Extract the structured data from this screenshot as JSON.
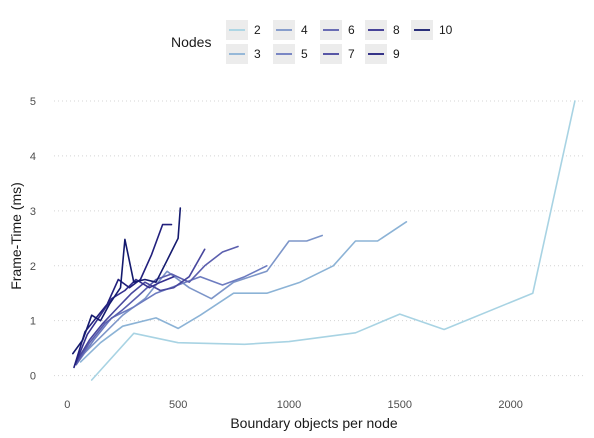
{
  "chart_data": {
    "type": "line",
    "xlabel": "Boundary objects per node",
    "ylabel": "Frame-Time (ms)",
    "xlim": [
      -60,
      2340
    ],
    "ylim": [
      -0.08,
      5.2
    ],
    "xticks": [
      0,
      500,
      1000,
      1500,
      2000
    ],
    "yticks": [
      0,
      1,
      2,
      3,
      4,
      5
    ],
    "grid": "horizontal dotted",
    "legend": {
      "title": "Nodes",
      "placement": "top"
    },
    "series": [
      {
        "name": "2",
        "color": "#a8d3e3",
        "x": [
          110,
          300,
          500,
          800,
          1000,
          1300,
          1500,
          1700,
          2100,
          2290
        ],
        "y": [
          -0.08,
          0.77,
          0.6,
          0.57,
          0.62,
          0.78,
          1.12,
          0.84,
          1.5,
          5.0
        ]
      },
      {
        "name": "3",
        "color": "#8cb3d6",
        "x": [
          60,
          150,
          250,
          400,
          500,
          600,
          750,
          900,
          1050,
          1200,
          1300,
          1400,
          1530
        ],
        "y": [
          0.25,
          0.6,
          0.9,
          1.05,
          0.86,
          1.1,
          1.5,
          1.5,
          1.7,
          2.0,
          2.45,
          2.45,
          2.8
        ]
      },
      {
        "name": "4",
        "color": "#7d96c9",
        "x": [
          50,
          150,
          250,
          350,
          450,
          550,
          650,
          750,
          900,
          1000,
          1080,
          1150
        ],
        "y": [
          0.3,
          0.7,
          1.1,
          1.4,
          1.9,
          1.6,
          1.4,
          1.7,
          1.9,
          2.45,
          2.45,
          2.55
        ]
      },
      {
        "name": "5",
        "color": "#6d7cc0",
        "x": [
          40,
          120,
          200,
          300,
          400,
          500,
          600,
          700,
          800,
          900
        ],
        "y": [
          0.2,
          0.65,
          1.05,
          1.25,
          1.5,
          1.65,
          1.8,
          1.65,
          1.8,
          2.0
        ]
      },
      {
        "name": "6",
        "color": "#5b5fae",
        "x": [
          40,
          100,
          170,
          250,
          320,
          400,
          470,
          550,
          620,
          700,
          770
        ],
        "y": [
          0.2,
          0.6,
          0.95,
          1.2,
          1.45,
          1.75,
          1.85,
          1.7,
          2.0,
          2.25,
          2.35
        ]
      },
      {
        "name": "7",
        "color": "#48479e",
        "x": [
          40,
          100,
          160,
          230,
          290,
          350,
          420,
          480,
          550,
          620
        ],
        "y": [
          0.25,
          0.65,
          0.95,
          1.25,
          1.5,
          1.7,
          1.55,
          1.6,
          1.8,
          2.3
        ]
      },
      {
        "name": "8",
        "color": "#35308f",
        "x": [
          35,
          90,
          150,
          200,
          260,
          310,
          370,
          420,
          480
        ],
        "y": [
          0.2,
          0.75,
          1.1,
          1.4,
          1.55,
          1.75,
          1.6,
          1.7,
          1.8
        ]
      },
      {
        "name": "9",
        "color": "#22207d",
        "x": [
          30,
          80,
          130,
          180,
          230,
          280,
          330,
          380,
          430,
          470
        ],
        "y": [
          0.15,
          0.8,
          1.05,
          1.3,
          1.75,
          1.6,
          1.75,
          2.2,
          2.75,
          2.75
        ]
      },
      {
        "name": "10",
        "color": "#141a6e",
        "x": [
          25,
          70,
          110,
          150,
          190,
          240,
          260,
          300,
          350,
          400,
          450,
          500,
          510
        ],
        "y": [
          0.4,
          0.65,
          1.1,
          1.0,
          1.3,
          1.6,
          2.48,
          1.7,
          1.75,
          1.7,
          2.1,
          2.5,
          3.05
        ]
      }
    ]
  }
}
